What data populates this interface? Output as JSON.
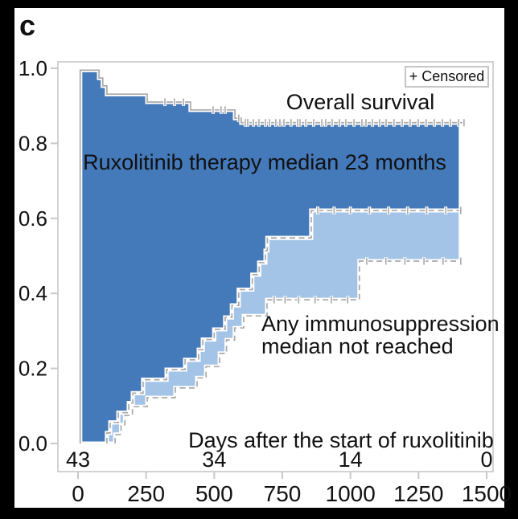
{
  "panel_label": "c",
  "legend": {
    "censored_label": "+ Censored"
  },
  "annotations": {
    "overall_survival": "Overall survival",
    "ruxolitinib_label": "Ruxolitinib therapy median 23 months",
    "immunosuppression_line1": "Any immunosuppression",
    "immunosuppression_line2": "median not reached",
    "x_axis_note": "Days after the start of ruxolitinib"
  },
  "chart_data": {
    "type": "area",
    "subtype": "kaplan-meier-stacked-survival",
    "title": "",
    "xlabel": "Days after the start of ruxolitinib",
    "ylabel": "",
    "xlim": [
      0,
      1500
    ],
    "ylim": [
      0.0,
      1.0
    ],
    "x_tick_days": [
      0,
      250,
      500,
      750,
      1000,
      1250,
      1500
    ],
    "x_tick_labels": [
      "0",
      "250",
      "500",
      "750",
      "1000",
      "1250",
      "1500"
    ],
    "y_tick_values": [
      0.0,
      0.2,
      0.4,
      0.6,
      0.8,
      1.0
    ],
    "y_tick_labels": [
      "0.0",
      "0.2",
      "0.4",
      "0.6",
      "0.8",
      "1.0"
    ],
    "grid": false,
    "legend_position": "top-right",
    "legend_label": "+ Censored",
    "colors": {
      "ruxolitinib_area": "#4479ba",
      "immunosuppression_area": "#a3c4e6",
      "curve_line": "#a9a9a9",
      "axis_line": "#c8c8c8",
      "text": "#111111",
      "frame": "#000000",
      "background": "#ffffff"
    },
    "series": [
      {
        "name": "Overall survival",
        "role": "top-boundary-line",
        "start": [
          8,
          0.995
        ],
        "steps": [
          [
            77,
            0.974
          ],
          [
            91,
            0.953
          ],
          [
            106,
            0.931
          ],
          [
            254,
            0.91
          ],
          [
            413,
            0.889
          ],
          [
            576,
            0.867
          ],
          [
            599,
            0.855
          ]
        ],
        "end_day": 1417,
        "end_value": 0.855,
        "censor_days": [
          319,
          354,
          387,
          496,
          525,
          540,
          590,
          614,
          623,
          644,
          664,
          688,
          703,
          726,
          741,
          756,
          782,
          806,
          815,
          836,
          865,
          895,
          909,
          933,
          960,
          983,
          1013,
          1042,
          1057,
          1081,
          1107,
          1131,
          1160,
          1190,
          1219,
          1249,
          1278,
          1308,
          1338,
          1367,
          1397,
          1417
        ]
      },
      {
        "name": "Ruxolitinib therapy",
        "median_note": "median 23 months",
        "role": "upper-area-boundary",
        "start": [
          106,
          0.0
        ],
        "steps": [
          [
            106,
            0.028
          ],
          [
            118,
            0.056
          ],
          [
            148,
            0.082
          ],
          [
            186,
            0.108
          ],
          [
            201,
            0.134
          ],
          [
            239,
            0.17
          ],
          [
            325,
            0.197
          ],
          [
            393,
            0.223
          ],
          [
            443,
            0.25
          ],
          [
            458,
            0.277
          ],
          [
            500,
            0.304
          ],
          [
            540,
            0.336
          ],
          [
            565,
            0.368
          ],
          [
            590,
            0.41
          ],
          [
            640,
            0.45
          ],
          [
            665,
            0.482
          ],
          [
            688,
            0.514
          ],
          [
            695,
            0.548
          ],
          [
            856,
            0.621
          ]
        ],
        "end_day": 1405,
        "end_value": 0.621,
        "censor_days": [
          880,
          940,
          1000,
          1070,
          1140,
          1210,
          1280,
          1350,
          1405
        ]
      },
      {
        "name": "Any immunosuppression",
        "median_note": "median not reached",
        "role": "lower-area-boundary",
        "start": [
          136,
          0.0
        ],
        "steps": [
          [
            136,
            0.024
          ],
          [
            158,
            0.05
          ],
          [
            172,
            0.075
          ],
          [
            200,
            0.098
          ],
          [
            254,
            0.122
          ],
          [
            357,
            0.148
          ],
          [
            437,
            0.175
          ],
          [
            470,
            0.205
          ],
          [
            520,
            0.24
          ],
          [
            545,
            0.276
          ],
          [
            575,
            0.308
          ],
          [
            608,
            0.34
          ],
          [
            694,
            0.383
          ],
          [
            1033,
            0.486
          ]
        ],
        "end_day": 1405,
        "end_value": 0.486,
        "censor_days": [
          720,
          760,
          810,
          870,
          930,
          990,
          1060,
          1130,
          1200,
          1270,
          1340,
          1405
        ]
      }
    ],
    "at_risk": {
      "days": [
        0,
        500,
        1000,
        1500
      ],
      "counts": [
        "43",
        "34",
        "14",
        "0"
      ]
    }
  }
}
